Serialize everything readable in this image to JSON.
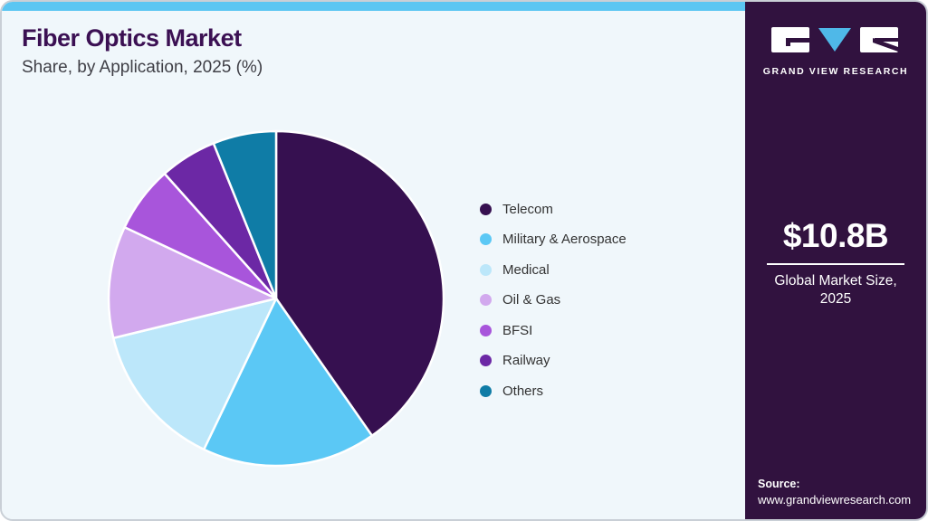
{
  "page": {
    "title": "Fiber Optics Market",
    "subtitle": "Share, by Application, 2025 (%)"
  },
  "sidebar": {
    "logo_text": "GRAND VIEW RESEARCH",
    "market_size_value": "$10.8B",
    "market_size_label": "Global Market Size, 2025",
    "source_label": "Source:",
    "source_url": "www.grandviewresearch.com"
  },
  "colors": {
    "top_strip": "#5bc6f2",
    "card_background": "#f0f7fb",
    "sidebar_background": "#31123f",
    "title_text": "#3b1053",
    "logo_triangle": "#4fb8e8",
    "slice_separator": "#ffffff"
  },
  "chart_data": {
    "type": "pie",
    "title": "Fiber Optics Market Share, by Application, 2025 (%)",
    "units": "%",
    "legend_position": "right",
    "start_angle_deg": -90,
    "direction": "clockwise",
    "values_labeled_on_chart": false,
    "slices": [
      {
        "label": "Telecom",
        "value": 40.3,
        "color": "#361050"
      },
      {
        "label": "Military & Aerospace",
        "value": 16.8,
        "color": "#5bc8f5"
      },
      {
        "label": "Medical",
        "value": 14.1,
        "color": "#bce7fa"
      },
      {
        "label": "Oil & Gas",
        "value": 10.8,
        "color": "#d2a9ee"
      },
      {
        "label": "BFSI",
        "value": 6.4,
        "color": "#a855db"
      },
      {
        "label": "Railway",
        "value": 5.5,
        "color": "#6c28a5"
      },
      {
        "label": "Others",
        "value": 6.1,
        "color": "#0f7ca6"
      }
    ]
  }
}
